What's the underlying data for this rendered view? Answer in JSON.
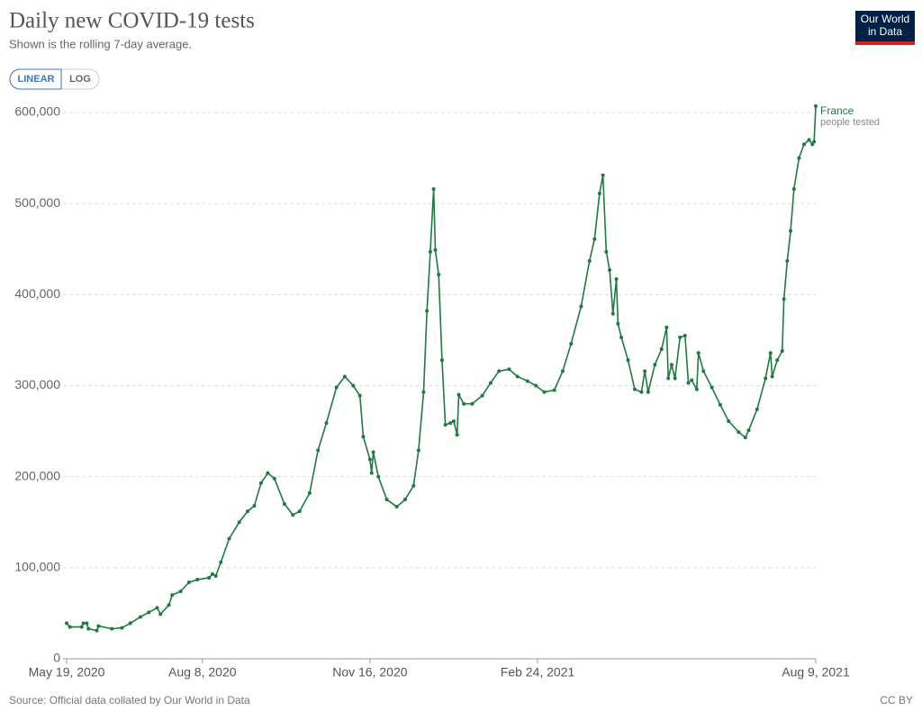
{
  "chart_data": {
    "type": "line",
    "title": "Daily new COVID-19 tests",
    "subtitle": "Shown is the rolling 7-day average.",
    "x": [
      "2020-05-19",
      "2020-05-21",
      "2020-05-28",
      "2020-05-29",
      "2020-05-31",
      "2020-06-01",
      "2020-06-06",
      "2020-06-07",
      "2020-06-15",
      "2020-06-21",
      "2020-06-26",
      "2020-07-02",
      "2020-07-07",
      "2020-07-12",
      "2020-07-14",
      "2020-07-19",
      "2020-07-21",
      "2020-07-26",
      "2020-07-31",
      "2020-08-05",
      "2020-08-12",
      "2020-08-14",
      "2020-08-16",
      "2020-08-19",
      "2020-08-24",
      "2020-08-30",
      "2020-09-04",
      "2020-09-08",
      "2020-09-12",
      "2020-09-16",
      "2020-09-20",
      "2020-09-26",
      "2020-10-01",
      "2020-10-05",
      "2020-10-11",
      "2020-10-16",
      "2020-10-21",
      "2020-10-27",
      "2020-11-01",
      "2020-11-06",
      "2020-11-10",
      "2020-11-12",
      "2020-11-16",
      "2020-11-17",
      "2020-11-18",
      "2020-11-21",
      "2020-11-26",
      "2020-12-02",
      "2020-12-07",
      "2020-12-12",
      "2020-12-15",
      "2020-12-18",
      "2020-12-20",
      "2020-12-22",
      "2020-12-24",
      "2020-12-25",
      "2020-12-27",
      "2020-12-29",
      "2020-12-31",
      "2021-01-03",
      "2021-01-05",
      "2021-01-07",
      "2021-01-08",
      "2021-01-11",
      "2021-01-16",
      "2021-01-22",
      "2021-01-27",
      "2021-02-01",
      "2021-02-07",
      "2021-02-12",
      "2021-02-18",
      "2021-02-23",
      "2021-02-28",
      "2021-03-06",
      "2021-03-11",
      "2021-03-16",
      "2021-03-22",
      "2021-03-27",
      "2021-03-30",
      "2021-04-02",
      "2021-04-04",
      "2021-04-06",
      "2021-04-08",
      "2021-04-10",
      "2021-04-12",
      "2021-04-13",
      "2021-04-15",
      "2021-04-19",
      "2021-04-23",
      "2021-04-27",
      "2021-04-29",
      "2021-05-01",
      "2021-05-05",
      "2021-05-09",
      "2021-05-12",
      "2021-05-13",
      "2021-05-15",
      "2021-05-17",
      "2021-05-20",
      "2021-05-23",
      "2021-05-25",
      "2021-05-27",
      "2021-05-30",
      "2021-05-31",
      "2021-06-03",
      "2021-06-08",
      "2021-06-13",
      "2021-06-18",
      "2021-06-24",
      "2021-06-28",
      "2021-06-30",
      "2021-07-05",
      "2021-07-10",
      "2021-07-13",
      "2021-07-14",
      "2021-07-17",
      "2021-07-20",
      "2021-07-21",
      "2021-07-23",
      "2021-07-25",
      "2021-07-27",
      "2021-07-30",
      "2021-08-02",
      "2021-08-05",
      "2021-08-07",
      "2021-08-08",
      "2021-08-09"
    ],
    "series": [
      {
        "name": "France",
        "note": "people tested",
        "color": "#1f7a3f",
        "values": [
          39000,
          35000,
          35000,
          39000,
          39000,
          33000,
          31000,
          36000,
          33000,
          34000,
          39000,
          46000,
          51000,
          56000,
          49000,
          59000,
          70000,
          74000,
          84000,
          87000,
          89000,
          93000,
          91000,
          106000,
          132000,
          150000,
          162000,
          168000,
          193000,
          204000,
          198000,
          170000,
          158000,
          162000,
          182000,
          229000,
          259000,
          298000,
          310000,
          300000,
          289000,
          244000,
          219000,
          204000,
          227000,
          200000,
          175000,
          167000,
          175000,
          190000,
          229000,
          293000,
          382000,
          447000,
          516000,
          449000,
          422000,
          328000,
          257000,
          259000,
          261000,
          246000,
          290000,
          280000,
          280000,
          289000,
          303000,
          316000,
          318000,
          310000,
          305000,
          300000,
          293000,
          295000,
          316000,
          346000,
          387000,
          437000,
          461000,
          511000,
          531000,
          447000,
          427000,
          379000,
          417000,
          368000,
          353000,
          328000,
          296000,
          293000,
          316000,
          293000,
          323000,
          340000,
          364000,
          308000,
          323000,
          308000,
          353000,
          355000,
          303000,
          306000,
          296000,
          336000,
          316000,
          298000,
          279000,
          261000,
          249000,
          243000,
          251000,
          274000,
          308000,
          336000,
          310000,
          328000,
          338000,
          395000,
          437000,
          470000,
          516000,
          550000,
          565000,
          570000,
          565000,
          568000,
          607000
        ]
      }
    ],
    "xlim": [
      "2020-05-19",
      "2021-08-09"
    ],
    "xticks": [
      {
        "value": "2020-05-19",
        "label": "May 19, 2020"
      },
      {
        "value": "2020-08-08",
        "label": "Aug 8, 2020"
      },
      {
        "value": "2020-11-16",
        "label": "Nov 16, 2020"
      },
      {
        "value": "2021-02-24",
        "label": "Feb 24, 2021"
      },
      {
        "value": "2021-08-09",
        "label": "Aug 9, 2021"
      }
    ],
    "ylim": [
      0,
      600000
    ],
    "yticks": [
      0,
      {
        "value": 100000,
        "label": "100,000"
      },
      {
        "value": 200000,
        "label": "200,000"
      },
      {
        "value": 300000,
        "label": "300,000"
      },
      {
        "value": 400000,
        "label": "400,000"
      },
      {
        "value": 500000,
        "label": "500,000"
      },
      {
        "value": 600000,
        "label": "600,000"
      }
    ],
    "grid": true
  },
  "controls": [
    "LINEAR",
    "LOG"
  ],
  "logo": [
    "Our World",
    "in Data"
  ],
  "source": "Source: Official data collated by Our World in Data",
  "license": "CC BY"
}
